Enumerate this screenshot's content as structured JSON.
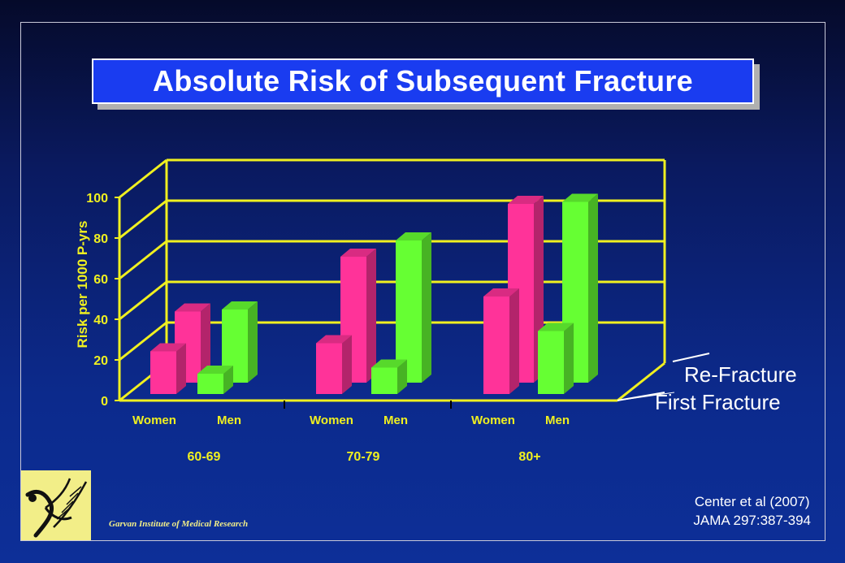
{
  "slide": {
    "title": "Absolute Risk of Subsequent Fracture",
    "citation_line1": "Center et al (2007)",
    "citation_line2": "JAMA 297:387-394",
    "institute": "Garvan Institute of Medical Research"
  },
  "colors": {
    "background_top": "#050a2a",
    "background_bottom": "#0d2f98",
    "title_box": "#1a3cf0",
    "axis_lines": "#f0f020",
    "women": "#ff3399",
    "men": "#66ff33"
  },
  "chart_data": {
    "type": "bar",
    "title": "Absolute Risk of Subsequent Fracture",
    "ylabel": "Risk per 1000 P-yrs",
    "ylim": [
      0,
      100
    ],
    "yticks": [
      0,
      20,
      40,
      60,
      80,
      100
    ],
    "grid": true,
    "depth_series": [
      "First Fracture",
      "Re-Fracture"
    ],
    "age_groups": [
      {
        "label": "60-69",
        "sexes": [
          "Women",
          "Men"
        ]
      },
      {
        "label": "70-79",
        "sexes": [
          "Women",
          "Men"
        ]
      },
      {
        "label": "80+",
        "sexes": [
          "Women",
          "Men"
        ]
      }
    ],
    "series": [
      {
        "name": "First Fracture",
        "categories": [
          "60-69 Women",
          "60-69 Men",
          "70-79 Women",
          "70-79 Men",
          "80+ Women",
          "80+ Men"
        ],
        "values": [
          21,
          10,
          25,
          13,
          48,
          31
        ]
      },
      {
        "name": "Re-Fracture",
        "categories": [
          "60-69 Women",
          "60-69 Men",
          "70-79 Women",
          "70-79 Men",
          "80+ Women",
          "80+ Men"
        ],
        "values": [
          35,
          36,
          62,
          70,
          88,
          89
        ]
      }
    ]
  }
}
